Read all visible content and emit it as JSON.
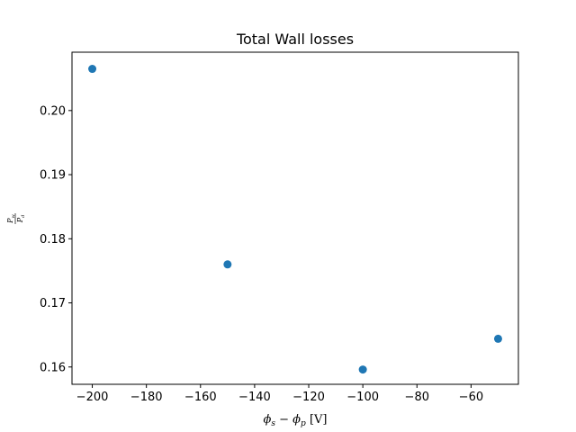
{
  "chart_data": {
    "type": "scatter",
    "title": "Total Wall losses",
    "xlabel": "φs − φp [V]",
    "ylabel": "Pw / Pd",
    "xlim": [
      -207.5,
      -42.5
    ],
    "ylim": [
      0.1573,
      0.2091
    ],
    "grid": false,
    "series": [
      {
        "color": "#1f77b4",
        "x": [
          -200,
          -150,
          -100,
          -50
        ],
        "y": [
          0.2065,
          0.176,
          0.1596,
          0.1644
        ]
      }
    ],
    "xticks": [
      {
        "value": -200,
        "label": "−200"
      },
      {
        "value": -180,
        "label": "−180"
      },
      {
        "value": -160,
        "label": "−160"
      },
      {
        "value": -140,
        "label": "−140"
      },
      {
        "value": -120,
        "label": "−120"
      },
      {
        "value": -100,
        "label": "−100"
      },
      {
        "value": -80,
        "label": "−80"
      },
      {
        "value": -60,
        "label": "−60"
      }
    ],
    "yticks": [
      {
        "value": 0.16,
        "label": "0.16"
      },
      {
        "value": 0.17,
        "label": "0.17"
      },
      {
        "value": 0.18,
        "label": "0.18"
      },
      {
        "value": 0.19,
        "label": "0.19"
      },
      {
        "value": 0.2,
        "label": "0.20"
      }
    ]
  }
}
